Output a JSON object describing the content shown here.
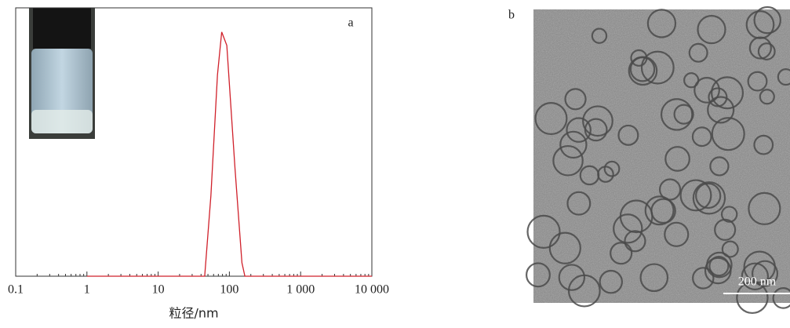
{
  "chart_data": {
    "type": "line",
    "x_label": "粒径/nm",
    "annotation": "a",
    "xscale": "log",
    "xlim": [
      0.1,
      10000
    ],
    "ylim": [
      0,
      100
    ],
    "xticks": [
      0.1,
      1,
      10,
      100,
      {
        "value": 1000,
        "label": "1 000"
      },
      {
        "value": 10000,
        "label": "10 000"
      }
    ],
    "xminorticks": [
      0.2,
      0.3,
      0.4,
      0.5,
      0.6,
      0.7,
      0.8,
      0.9,
      2,
      3,
      4,
      5,
      6,
      7,
      8,
      9,
      20,
      30,
      40,
      50,
      60,
      70,
      80,
      90,
      200,
      300,
      400,
      500,
      600,
      700,
      800,
      900,
      2000,
      3000,
      4000,
      5000,
      6000,
      7000,
      8000,
      9000
    ],
    "series": [
      {
        "color": "#d0202a",
        "x": [
          1,
          45,
          55,
          68,
          78,
          92,
          120,
          150,
          165,
          10000
        ],
        "values": [
          0,
          0,
          30,
          75,
          91,
          86,
          40,
          5,
          0,
          0
        ]
      }
    ]
  },
  "image_panel": {
    "label": "b",
    "scale_bar": "200 nm"
  }
}
